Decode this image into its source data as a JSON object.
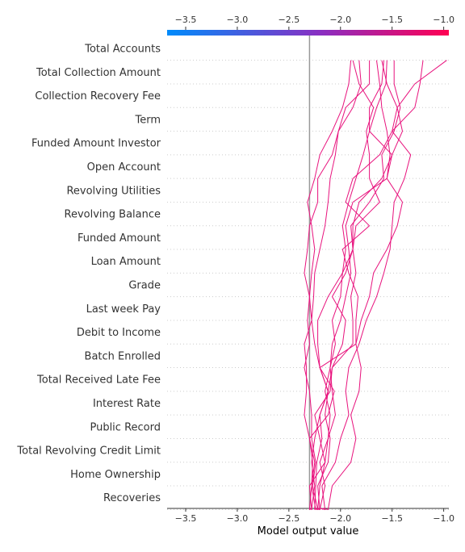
{
  "chart_data": {
    "type": "line",
    "subtype": "shap-decision-plot",
    "title": "",
    "xlabel": "Model output value",
    "ylabel": "",
    "xlim": [
      -3.68,
      -0.95
    ],
    "x_ticks": [
      -3.5,
      -3.0,
      -2.5,
      -2.0,
      -1.5,
      -1.0
    ],
    "x_tick_labels": [
      "−3.5",
      "−3.0",
      "−2.5",
      "−2.0",
      "−1.5",
      "−1.0"
    ],
    "base_value": -2.3,
    "features": [
      "Total Accounts",
      "Total Collection Amount",
      "Collection Recovery Fee",
      "Term",
      "Funded Amount Investor",
      "Open Account",
      "Revolving Utilities",
      "Revolving Balance",
      "Funded Amount",
      "Loan Amount",
      "Grade",
      "Last week Pay",
      "Debit to Income",
      "Batch Enrolled",
      "Total Received Late Fee",
      "Interest Rate",
      "Public Record",
      "Total Revolving Credit Limit",
      "Home Ownership",
      "Recoveries"
    ],
    "colorbar": {
      "low_color": "#008bfb",
      "mid_color": "#8b2ec1",
      "high_color": "#ff0052"
    },
    "line_color": "#e8127d",
    "base_line_color": "#999999",
    "grid": true,
    "series": [
      {
        "values": [
          -2.25,
          -2.25,
          -2.24,
          -2.23,
          -2.18,
          -2.2,
          -2.12,
          -2.2,
          -1.85,
          -1.85,
          -1.83,
          -1.92,
          -1.98,
          -1.72,
          -1.95,
          -1.88,
          -1.62,
          -1.5,
          -1.28,
          -1.23,
          -1.2
        ]
      },
      {
        "values": [
          -2.22,
          -2.24,
          -2.28,
          -2.25,
          -2.3,
          -2.12,
          -2.06,
          -2.2,
          -2.22,
          -2.22,
          -2.12,
          -1.98,
          -1.95,
          -1.98,
          -1.92,
          -1.85,
          -1.78,
          -1.72,
          -1.65,
          -1.56,
          -1.55
        ]
      },
      {
        "values": [
          -2.2,
          -2.22,
          -2.27,
          -2.24,
          -2.28,
          -2.28,
          -2.3,
          -2.35,
          -2.3,
          -2.32,
          -2.3,
          -2.28,
          -2.25,
          -2.28,
          -2.32,
          -2.25,
          -2.2,
          -2.08,
          -1.98,
          -1.92,
          -1.9
        ]
      },
      {
        "values": [
          -2.28,
          -2.3,
          -2.28,
          -2.27,
          -2.3,
          -2.35,
          -2.33,
          -2.33,
          -2.35,
          -2.28,
          -2.3,
          -2.35,
          -2.32,
          -2.3,
          -2.22,
          -2.22,
          -2.08,
          -2.02,
          -1.88,
          -1.8,
          -1.82
        ]
      },
      {
        "values": [
          -2.22,
          -2.2,
          -2.15,
          -2.2,
          -2.12,
          -2.1,
          -2.15,
          -2.1,
          -2.05,
          -2.08,
          -2.0,
          -1.98,
          -1.88,
          -1.9,
          -1.72,
          -1.58,
          -1.6,
          -1.48,
          -1.42,
          -1.48,
          -1.48
        ]
      },
      {
        "values": [
          -2.25,
          -2.22,
          -2.2,
          -2.15,
          -2.12,
          -2.05,
          -2.08,
          -2.1,
          -2.08,
          -2.0,
          -1.95,
          -1.9,
          -1.92,
          -1.95,
          -1.88,
          -1.55,
          -1.52,
          -1.55,
          -1.6,
          -1.62,
          -1.65
        ]
      },
      {
        "values": [
          -2.18,
          -2.12,
          -2.08,
          -1.9,
          -1.85,
          -1.9,
          -1.82,
          -1.8,
          -1.85,
          -1.8,
          -1.72,
          -1.68,
          -1.55,
          -1.45,
          -1.4,
          -1.55,
          -1.5,
          -1.72,
          -1.72,
          -1.6,
          -1.58
        ]
      },
      {
        "values": [
          -2.3,
          -2.28,
          -2.3,
          -2.15,
          -2.2,
          -2.25,
          -2.1,
          -2.08,
          -1.88,
          -1.88,
          -1.9,
          -1.85,
          -1.88,
          -1.85,
          -1.62,
          -1.72,
          -1.72,
          -1.75,
          -1.68,
          -1.82,
          -1.88
        ]
      },
      {
        "values": [
          -2.2,
          -2.15,
          -2.18,
          -2.05,
          -2.0,
          -1.92,
          -1.95,
          -1.92,
          -1.82,
          -1.75,
          -1.65,
          -1.58,
          -1.52,
          -1.5,
          -1.48,
          -1.38,
          -1.32,
          -1.5,
          -1.45,
          -1.28,
          -0.97
        ]
      },
      {
        "values": [
          -2.25,
          -2.2,
          -2.22,
          -2.12,
          -2.1,
          -2.15,
          -2.12,
          -2.2,
          -2.25,
          -2.28,
          -2.26,
          -2.25,
          -2.2,
          -2.15,
          -2.12,
          -2.1,
          -2.05,
          -2.02,
          -1.95,
          -1.72,
          -1.72
        ]
      },
      {
        "values": [
          -2.28,
          -2.28,
          -2.25,
          -2.28,
          -2.25,
          -2.2,
          -2.12,
          -2.08,
          -1.98,
          -1.95,
          -2.08,
          -1.95,
          -1.88,
          -1.88,
          -1.82,
          -1.6,
          -1.5,
          -1.4,
          -1.45,
          -1.55,
          -1.6
        ]
      }
    ]
  }
}
